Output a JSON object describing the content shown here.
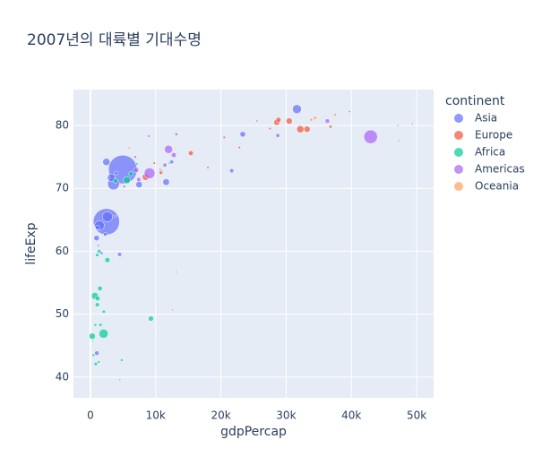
{
  "chart_data": {
    "type": "scatter",
    "title": "2007년의 대륙별 기대수명",
    "x_label": "gdpPercap",
    "y_label": "lifeExp",
    "legend_title": "continent",
    "xlim": [
      -2600,
      52600
    ],
    "ylim": [
      36.7,
      85.7
    ],
    "xticks": [
      0,
      {
        "value": 10000,
        "label": "10k"
      },
      {
        "value": 20000,
        "label": "20k"
      },
      {
        "value": 30000,
        "label": "30k"
      },
      {
        "value": 40000,
        "label": "40k"
      },
      {
        "value": 50000,
        "label": "50k"
      }
    ],
    "yticks": [
      40,
      50,
      60,
      70,
      80
    ],
    "grid": true,
    "legend_position": "right",
    "series": [
      {
        "name": "Asia",
        "color": "#636efa",
        "x": [
          4959,
          2452,
          31656,
          3541,
          2606,
          1391,
          3190,
          2442,
          11606,
          7458,
          23348,
          944,
          975,
          1091,
          12452,
          21655,
          4471,
          47307,
          47143,
          39725,
          25523,
          3970,
          28718,
          1714,
          2281
        ],
        "y": [
          73.0,
          64.7,
          82.6,
          70.7,
          65.5,
          64.1,
          71.7,
          74.2,
          71.0,
          70.6,
          78.6,
          62.1,
          43.8,
          63.8,
          74.2,
          72.8,
          59.5,
          77.6,
          80.0,
          82.2,
          80.7,
          72.4,
          78.4,
          59.7,
          62.7
        ],
        "size": [
          1318,
          1110,
          127,
          224,
          169,
          150,
          91,
          85,
          69,
          65,
          49,
          47,
          32,
          29,
          24,
          27,
          27,
          2.5,
          4.6,
          7.0,
          6.4,
          20,
          23,
          14,
          22
        ]
      },
      {
        "name": "Europe",
        "color": "#EF553B",
        "x": [
          32170,
          8458,
          30470,
          33203,
          28570,
          28821,
          15390,
          10808,
          36798,
          49357,
          37506,
          33860,
          27538,
          20510,
          22833,
          18009,
          9787,
          5937,
          10681
        ],
        "y": [
          79.4,
          71.8,
          80.7,
          79.4,
          80.5,
          80.9,
          75.6,
          72.5,
          79.8,
          80.2,
          81.7,
          80.9,
          79.5,
          78.1,
          76.5,
          73.3,
          74.0,
          76.4,
          73.0
        ],
        "size": [
          82,
          71,
          61,
          61,
          58,
          40,
          38,
          22,
          16.6,
          4.6,
          7.5,
          9,
          10.7,
          10.6,
          10.2,
          10,
          10,
          3.6,
          7.3
        ]
      },
      {
        "name": "Africa",
        "color": "#00cc96",
        "x": [
          2014,
          691,
          5581,
          278,
          9270,
          2602,
          1107,
          1463,
          3820,
          6223,
          1056,
          1328,
          824,
          1045,
          1545,
          2042,
          4797,
          470,
          759,
          1271,
          12570,
          13206,
          12057,
          10957,
          7093,
          415,
          4513
        ],
        "y": [
          46.9,
          52.9,
          71.3,
          46.5,
          49.3,
          58.6,
          52.5,
          54.1,
          71.2,
          72.3,
          51.5,
          60.0,
          42.1,
          59.4,
          48.3,
          50.4,
          42.7,
          43.5,
          48.3,
          42.4,
          50.7,
          56.7,
          74.0,
          72.8,
          73.9,
          45.7,
          39.6
        ],
        "size": [
          135,
          77,
          80,
          64,
          44,
          42,
          38,
          35,
          33,
          33,
          29,
          23,
          20,
          19,
          18,
          17.7,
          12.4,
          12.3,
          13.3,
          11.7,
          1.6,
          1.45,
          6,
          1.25,
          10.3,
          3.2,
          1.1
        ]
      },
      {
        "name": "Americas",
        "color": "#ab63fa",
        "x": [
          42952,
          9066,
          11978,
          7007,
          12779,
          36319,
          7409,
          11416,
          13172,
          6873,
          5186,
          8948,
          1202,
          3822
        ],
        "y": [
          78.2,
          72.4,
          76.2,
          72.9,
          75.3,
          80.7,
          71.4,
          73.7,
          78.6,
          75.0,
          70.3,
          78.3,
          60.9,
          65.6
        ],
        "size": [
          301,
          190,
          108,
          44,
          40,
          33,
          29,
          26,
          16,
          13.8,
          12.6,
          11.4,
          8.5,
          9.1
        ]
      },
      {
        "name": "Oceania",
        "color": "#FFA15A",
        "x": [
          34435,
          25185
        ],
        "y": [
          81.2,
          80.2
        ],
        "size": [
          20.4,
          4.1
        ]
      }
    ]
  }
}
